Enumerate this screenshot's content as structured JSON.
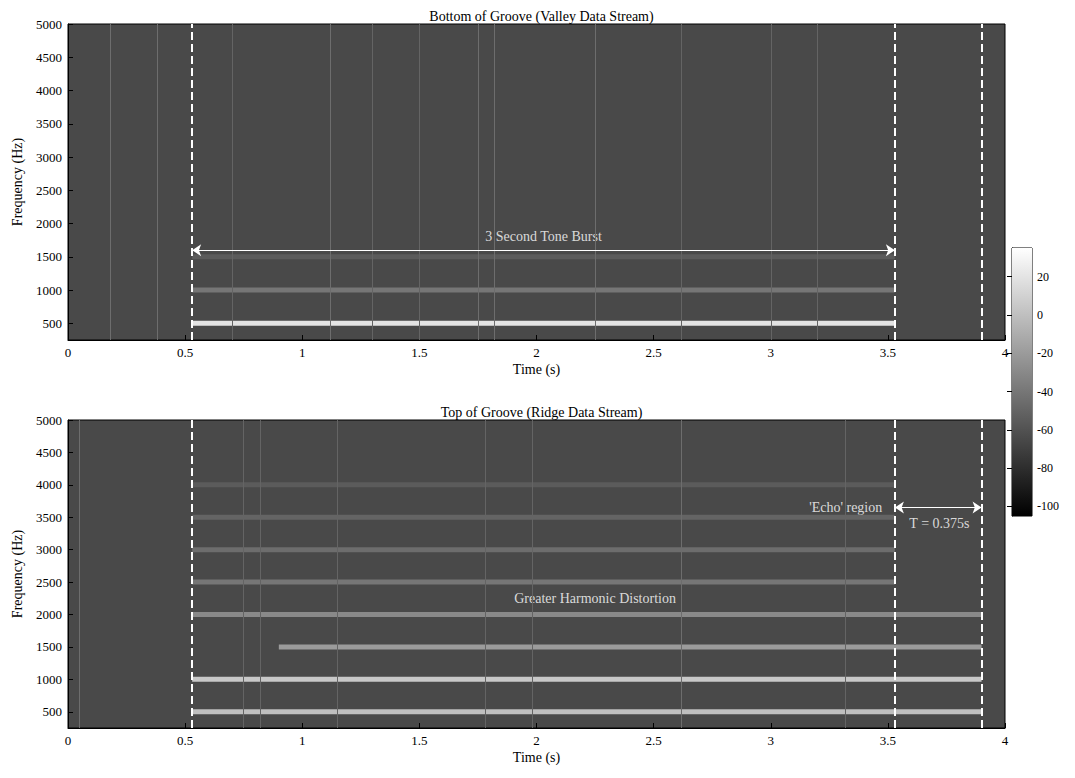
{
  "chart_data": [
    {
      "type": "spectrogram",
      "title": "Bottom of Groove (Valley Data Stream)",
      "x_label": "Time (s)",
      "y_label": "Frequency (Hz)",
      "xlim": [
        0,
        4
      ],
      "xticks": [
        0,
        0.5,
        1,
        1.5,
        2,
        2.5,
        3,
        3.5,
        4
      ],
      "ylim": [
        250,
        5000
      ],
      "yticks": [
        500,
        1000,
        1500,
        2000,
        2500,
        3000,
        3500,
        4000,
        4500,
        5000
      ],
      "background_level": -65,
      "tones": [
        {
          "frequency": 500,
          "start": 0.53,
          "end": 3.53,
          "level": 20
        },
        {
          "frequency": 1000,
          "start": 0.53,
          "end": 3.53,
          "level": -40
        },
        {
          "frequency": 1500,
          "start": 0.53,
          "end": 3.53,
          "level": -55
        }
      ],
      "transients": [
        {
          "time": 0.18,
          "level": -45
        },
        {
          "time": 0.38,
          "level": -45
        },
        {
          "time": 0.7,
          "level": -50
        },
        {
          "time": 1.12,
          "level": -45
        },
        {
          "time": 1.3,
          "level": -50
        },
        {
          "time": 1.5,
          "level": -50
        },
        {
          "time": 1.75,
          "level": -45
        },
        {
          "time": 1.82,
          "level": -45
        },
        {
          "time": 2.25,
          "level": -45
        },
        {
          "time": 2.62,
          "level": -50
        },
        {
          "time": 3.0,
          "level": -50
        },
        {
          "time": 3.2,
          "level": -50
        }
      ],
      "markers": [
        0.53,
        3.53,
        3.9
      ],
      "arrows": [
        {
          "start": 0.53,
          "end": 3.53,
          "y": 1600
        }
      ],
      "annotations": [
        {
          "text": "3 Second Tone Burst",
          "x": 2.03,
          "y": 1800
        }
      ]
    },
    {
      "type": "spectrogram",
      "title": "Top of Groove (Ridge Data Stream)",
      "x_label": "Time (s)",
      "y_label": "Frequency (Hz)",
      "xlim": [
        0,
        4
      ],
      "xticks": [
        0,
        0.5,
        1,
        1.5,
        2,
        2.5,
        3,
        3.5,
        4
      ],
      "ylim": [
        250,
        5000
      ],
      "yticks": [
        500,
        1000,
        1500,
        2000,
        2500,
        3000,
        3500,
        4000,
        4500,
        5000
      ],
      "background_level": -65,
      "tones": [
        {
          "frequency": 500,
          "start": 0.53,
          "end": 3.9,
          "level": 0
        },
        {
          "frequency": 1000,
          "start": 0.53,
          "end": 3.9,
          "level": 5
        },
        {
          "frequency": 1500,
          "start": 0.9,
          "end": 3.9,
          "level": -20
        },
        {
          "frequency": 2000,
          "start": 0.53,
          "end": 3.9,
          "level": -30
        },
        {
          "frequency": 2500,
          "start": 0.53,
          "end": 3.53,
          "level": -40
        },
        {
          "frequency": 3000,
          "start": 0.53,
          "end": 3.53,
          "level": -45
        },
        {
          "frequency": 3500,
          "start": 0.53,
          "end": 3.53,
          "level": -50
        },
        {
          "frequency": 4000,
          "start": 0.53,
          "end": 3.53,
          "level": -55
        }
      ],
      "transients": [
        {
          "time": 0.05,
          "level": -45
        },
        {
          "time": 0.75,
          "level": -50
        },
        {
          "time": 0.82,
          "level": -50
        },
        {
          "time": 1.15,
          "level": -50
        },
        {
          "time": 1.78,
          "level": -50
        },
        {
          "time": 1.98,
          "level": -50
        },
        {
          "time": 2.62,
          "level": -45
        },
        {
          "time": 3.32,
          "level": -50
        }
      ],
      "markers": [
        0.53,
        3.53,
        3.9
      ],
      "arrows": [
        {
          "start": 3.53,
          "end": 3.9,
          "y": 3650
        }
      ],
      "annotations": [
        {
          "text": "'Echo' region",
          "x": 3.32,
          "y": 3650
        },
        {
          "text": "T = 0.375s",
          "x": 3.72,
          "y": 3400
        },
        {
          "text": "Greater Harmonic Distortion",
          "x": 2.25,
          "y": 2250
        }
      ]
    },
    {
      "type": "colorbar",
      "ylim": [
        -105,
        35
      ],
      "yticks": [
        -100,
        -80,
        -60,
        -40,
        -20,
        0,
        20
      ]
    }
  ]
}
